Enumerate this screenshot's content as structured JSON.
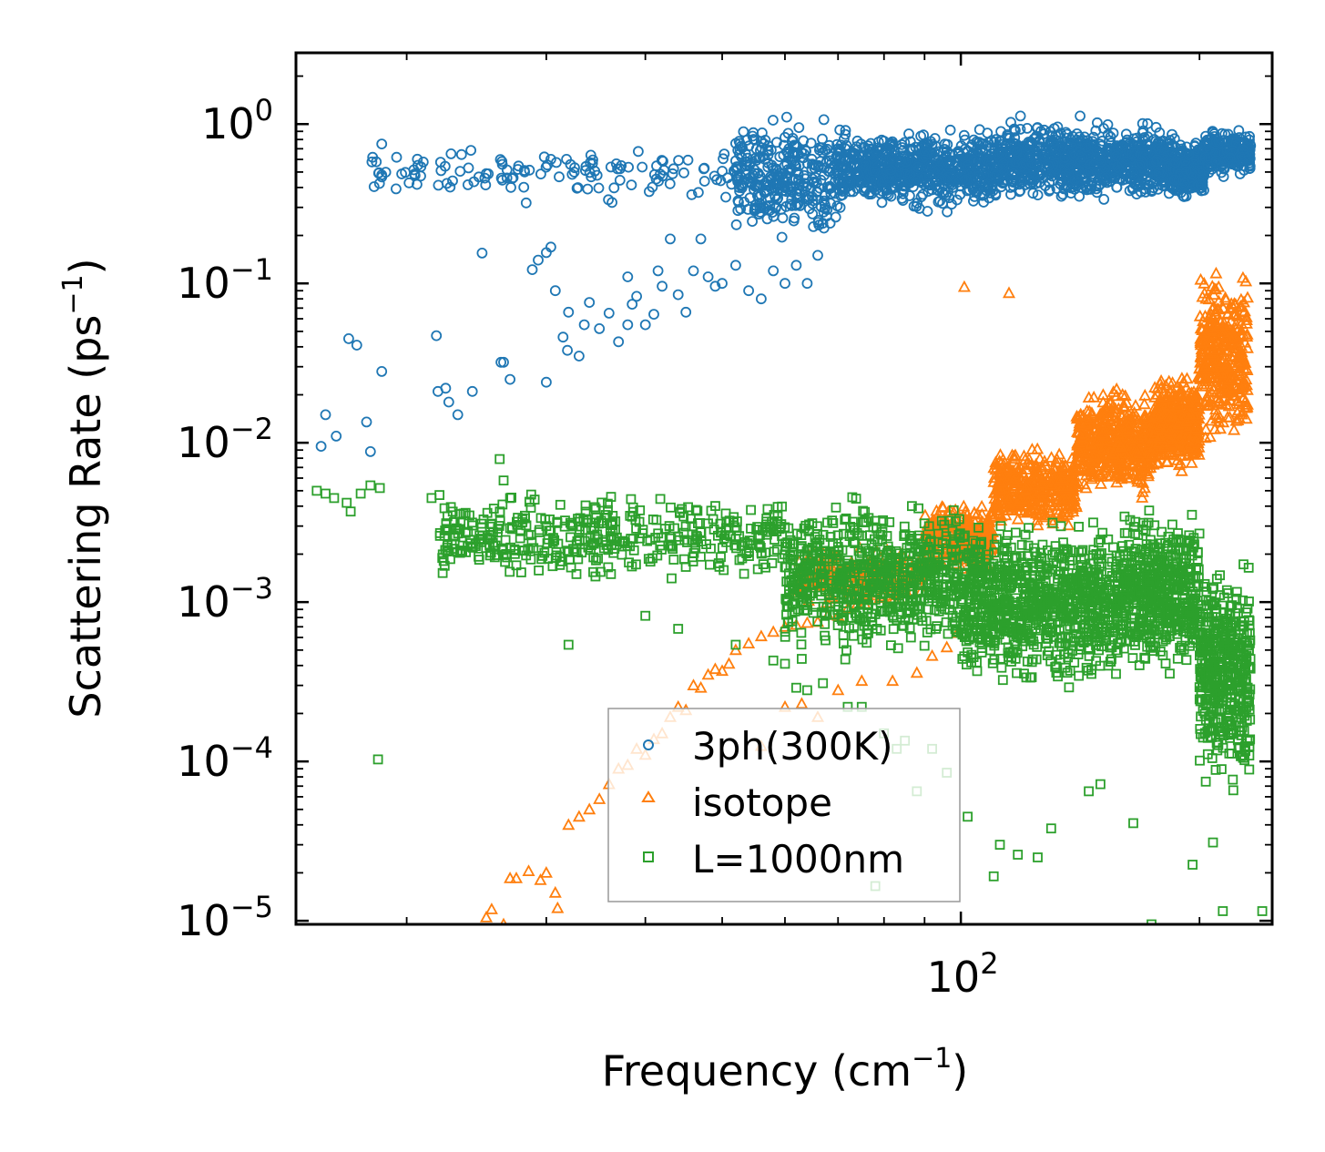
{
  "chart_data": {
    "type": "scatter",
    "title": "",
    "xlabel": "Frequency (cm",
    "xlabel_sup": "−1",
    "xlabel_end": ")",
    "ylabel": "Scattering Rate (ps",
    "ylabel_sup": "−1",
    "ylabel_end": ")",
    "xscale": "log",
    "yscale": "log",
    "xlim": [
      14.5,
      247
    ],
    "ylim": [
      9.5e-06,
      2.8
    ],
    "x_ticks": [
      {
        "value": 100,
        "base": "10",
        "exp": "2"
      }
    ],
    "y_ticks": [
      {
        "value": 1,
        "base": "10",
        "exp": "0"
      },
      {
        "value": 0.1,
        "base": "10",
        "exp": "−1"
      },
      {
        "value": 0.01,
        "base": "10",
        "exp": "−2"
      },
      {
        "value": 0.001,
        "base": "10",
        "exp": "−3"
      },
      {
        "value": 0.0001,
        "base": "10",
        "exp": "−4"
      },
      {
        "value": 1e-05,
        "base": "10",
        "exp": "−5"
      }
    ],
    "legend_position": "lower-center",
    "series": [
      {
        "name": "3ph(300K)",
        "marker": "circle",
        "color": "#1f77b4",
        "points": [
          [
            15.6,
            0.0095
          ],
          [
            15.8,
            0.015
          ],
          [
            16.3,
            0.011
          ],
          [
            16.9,
            0.045
          ],
          [
            17.3,
            0.041
          ],
          [
            17.8,
            0.0135
          ],
          [
            18.6,
            0.028
          ],
          [
            18.6,
            0.48
          ],
          [
            18.6,
            0.75
          ],
          [
            18.0,
            0.0088
          ],
          [
            21.8,
            0.047
          ],
          [
            21.9,
            0.021
          ],
          [
            22.4,
            0.022
          ],
          [
            22.6,
            0.018
          ],
          [
            23.2,
            0.015
          ],
          [
            24.2,
            0.021
          ],
          [
            24.9,
            0.155
          ],
          [
            26.3,
            0.032
          ],
          [
            26.5,
            0.032
          ],
          [
            27.0,
            0.025
          ],
          [
            28.3,
            0.32
          ],
          [
            28.8,
            0.122
          ],
          [
            29.3,
            0.14
          ],
          [
            30.0,
            0.156
          ],
          [
            30.4,
            0.169
          ],
          [
            30.8,
            0.09
          ],
          [
            30.0,
            0.024
          ],
          [
            31.5,
            0.046
          ],
          [
            31.9,
            0.038
          ],
          [
            32.0,
            0.066
          ],
          [
            33.0,
            0.035
          ],
          [
            33.5,
            0.055
          ],
          [
            34.0,
            0.076
          ],
          [
            35.0,
            0.052
          ],
          [
            36.0,
            0.065
          ],
          [
            37.0,
            0.043
          ],
          [
            38.0,
            0.11
          ],
          [
            38.5,
            0.074
          ],
          [
            38.0,
            0.055
          ],
          [
            39.0,
            0.083
          ],
          [
            40.0,
            0.055
          ],
          [
            41.0,
            0.064
          ],
          [
            41.5,
            0.12
          ],
          [
            42.0,
            0.096
          ],
          [
            43.0,
            0.19
          ],
          [
            44.0,
            0.085
          ],
          [
            45.0,
            0.066
          ],
          [
            46.0,
            0.12
          ],
          [
            47.0,
            0.19
          ],
          [
            48.0,
            0.11
          ],
          [
            49.0,
            0.096
          ],
          [
            50.0,
            0.1
          ],
          [
            52.0,
            0.13
          ],
          [
            54.0,
            0.09
          ],
          [
            56.0,
            0.08
          ],
          [
            58.0,
            0.12
          ],
          [
            60.0,
            0.1
          ],
          [
            62.0,
            0.13
          ],
          [
            64.0,
            0.1
          ],
          [
            66.0,
            0.15
          ]
        ],
        "bands": [
          {
            "x_min": 18,
            "x_max": 52,
            "y_min": 0.3,
            "y_max": 0.82,
            "count": 130
          },
          {
            "x_min": 52,
            "x_max": 70,
            "y_min": 0.16,
            "y_max": 1.3,
            "count": 320
          },
          {
            "x_min": 70,
            "x_max": 110,
            "y_min": 0.27,
            "y_max": 1.0,
            "count": 680
          },
          {
            "x_min": 110,
            "x_max": 185,
            "y_min": 0.3,
            "y_max": 1.15,
            "count": 900
          },
          {
            "x_min": 185,
            "x_max": 203,
            "y_min": 0.32,
            "y_max": 0.85,
            "count": 250
          },
          {
            "x_min": 203,
            "x_max": 232,
            "y_min": 0.45,
            "y_max": 0.95,
            "count": 260
          }
        ]
      },
      {
        "name": "isotope",
        "marker": "triangle",
        "color": "#ff7f0e",
        "points": [
          [
            25.2,
            1.05e-05
          ],
          [
            25.6,
            1.18e-05
          ],
          [
            26.5,
            9.5e-06
          ],
          [
            27.0,
            1.85e-05
          ],
          [
            27.5,
            1.85e-05
          ],
          [
            28.5,
            2.05e-05
          ],
          [
            29.5,
            1.8e-05
          ],
          [
            30.0,
            2e-05
          ],
          [
            30.8,
            1.5e-05
          ],
          [
            31.0,
            1.2e-05
          ],
          [
            32.0,
            4e-05
          ],
          [
            33.0,
            4.5e-05
          ],
          [
            34.0,
            5e-05
          ],
          [
            35.0,
            5.8e-05
          ],
          [
            36.0,
            7.2e-05
          ],
          [
            37.0,
            9e-05
          ],
          [
            38.0,
            9.5e-05
          ],
          [
            39.0,
            0.00012
          ],
          [
            40.0,
            0.00011
          ],
          [
            41.0,
            0.000138
          ],
          [
            42.0,
            0.00015
          ],
          [
            43.0,
            0.00019
          ],
          [
            44.0,
            0.00022
          ],
          [
            45.0,
            0.00021
          ],
          [
            46.0,
            0.0003
          ],
          [
            47.0,
            0.00029
          ],
          [
            48.0,
            0.00035
          ],
          [
            49.0,
            0.00038
          ],
          [
            50.0,
            0.00037
          ],
          [
            51.0,
            0.00041
          ],
          [
            52.0,
            0.0005
          ],
          [
            54.0,
            0.00055
          ],
          [
            56.0,
            0.00061
          ],
          [
            58.0,
            0.00065
          ],
          [
            60.0,
            0.0007
          ],
          [
            62.0,
            0.00072
          ],
          [
            64.0,
            0.00074
          ],
          [
            66.0,
            0.00075
          ],
          [
            68.0,
            0.00083
          ],
          [
            70.0,
            0.00082
          ],
          [
            72.0,
            0.00091
          ],
          [
            74.0,
            0.00097
          ],
          [
            76.0,
            0.00105
          ],
          [
            78.0,
            0.0011
          ],
          [
            80.0,
            0.0012
          ],
          [
            82.0,
            0.00125
          ],
          [
            85.0,
            0.0013
          ],
          [
            88.0,
            0.0015
          ],
          [
            92.0,
            0.0016
          ],
          [
            95.0,
            0.0017
          ],
          [
            101.0,
            0.095
          ],
          [
            115.0,
            0.087
          ],
          [
            56.0,
            0.000125
          ],
          [
            60.0,
            0.00022
          ],
          [
            63.0,
            0.00023
          ],
          [
            66.0,
            0.00019
          ],
          [
            70.0,
            0.00028
          ],
          [
            75.0,
            0.00032
          ],
          [
            82.0,
            0.00032
          ],
          [
            88.0,
            0.00036
          ],
          [
            92.0,
            0.00046
          ],
          [
            96.0,
            0.00052
          ],
          [
            99.0,
            0.00064
          ]
        ],
        "bands": [
          {
            "x_min": 62,
            "x_max": 90,
            "y_min": 0.0009,
            "y_max": 0.0024,
            "count": 200
          },
          {
            "x_min": 90,
            "x_max": 110,
            "y_min": 0.0015,
            "y_max": 0.0045,
            "count": 300
          },
          {
            "x_min": 110,
            "x_max": 140,
            "y_min": 0.0025,
            "y_max": 0.01,
            "count": 400
          },
          {
            "x_min": 140,
            "x_max": 175,
            "y_min": 0.004,
            "y_max": 0.025,
            "count": 500
          },
          {
            "x_min": 175,
            "x_max": 200,
            "y_min": 0.006,
            "y_max": 0.03,
            "count": 400
          },
          {
            "x_min": 200,
            "x_max": 230,
            "y_min": 0.008,
            "y_max": 0.14,
            "count": 380
          }
        ]
      },
      {
        "name": "L=1000nm",
        "marker": "square",
        "color": "#2ca02c",
        "points": [
          [
            15.4,
            0.005
          ],
          [
            15.8,
            0.0048
          ],
          [
            16.2,
            0.0045
          ],
          [
            16.8,
            0.0042
          ],
          [
            17.0,
            0.0037
          ],
          [
            18.0,
            0.0054
          ],
          [
            18.5,
            0.0052
          ],
          [
            17.5,
            0.0048
          ],
          [
            18.4,
            0.000103
          ],
          [
            21.5,
            0.0045
          ],
          [
            22.0,
            0.0047
          ],
          [
            22.5,
            0.0022
          ],
          [
            22.8,
            0.0023
          ],
          [
            23.5,
            0.0021
          ],
          [
            24.0,
            0.0035
          ],
          [
            25.0,
            0.0033
          ],
          [
            26.2,
            0.0079
          ],
          [
            26.5,
            0.0058
          ],
          [
            27.0,
            0.0045
          ],
          [
            27.5,
            0.0017
          ],
          [
            28.0,
            0.0033
          ],
          [
            29.0,
            0.0044
          ],
          [
            30.0,
            0.003
          ],
          [
            32.0,
            0.00054
          ],
          [
            40.0,
            0.00082
          ],
          [
            44.0,
            0.00068
          ],
          [
            52.0,
            0.00054
          ],
          [
            58.0,
            0.00043
          ],
          [
            60.0,
            0.00041
          ],
          [
            62.0,
            0.00029
          ],
          [
            63.0,
            0.00044
          ],
          [
            64.0,
            0.00028
          ],
          [
            67.0,
            0.00031
          ],
          [
            72.0,
            0.00022
          ],
          [
            75.0,
            0.00022
          ],
          [
            80.0,
            0.00015
          ],
          [
            83.0,
            0.00012
          ],
          [
            85.0,
            0.000135
          ],
          [
            78.0,
            1.65e-05
          ],
          [
            88.0,
            6.5e-05
          ],
          [
            92.0,
            0.00012
          ],
          [
            96.0,
            8.5e-05
          ],
          [
            102.0,
            4.5e-05
          ],
          [
            110.0,
            1.9e-05
          ],
          [
            112.0,
            3e-05
          ],
          [
            118.0,
            2.6e-05
          ],
          [
            125.0,
            2.5e-05
          ],
          [
            130.0,
            3.8e-05
          ],
          [
            145.0,
            6.5e-05
          ],
          [
            150.0,
            7.2e-05
          ],
          [
            165.0,
            4.1e-05
          ],
          [
            174.0,
            9.5e-06
          ],
          [
            196.0,
            2.25e-05
          ],
          [
            208.0,
            3.1e-05
          ],
          [
            214.0,
            1.15e-05
          ],
          [
            240.0,
            1.15e-05
          ]
        ],
        "bands": [
          {
            "x_min": 22,
            "x_max": 60,
            "y_min": 0.0012,
            "y_max": 0.0055,
            "count": 420
          },
          {
            "x_min": 60,
            "x_max": 100,
            "y_min": 0.0004,
            "y_max": 0.0052,
            "count": 700
          },
          {
            "x_min": 100,
            "x_max": 160,
            "y_min": 0.00025,
            "y_max": 0.004,
            "count": 900
          },
          {
            "x_min": 160,
            "x_max": 200,
            "y_min": 0.0003,
            "y_max": 0.0045,
            "count": 500
          },
          {
            "x_min": 200,
            "x_max": 232,
            "y_min": 5e-05,
            "y_max": 0.0025,
            "count": 450
          }
        ]
      }
    ]
  }
}
